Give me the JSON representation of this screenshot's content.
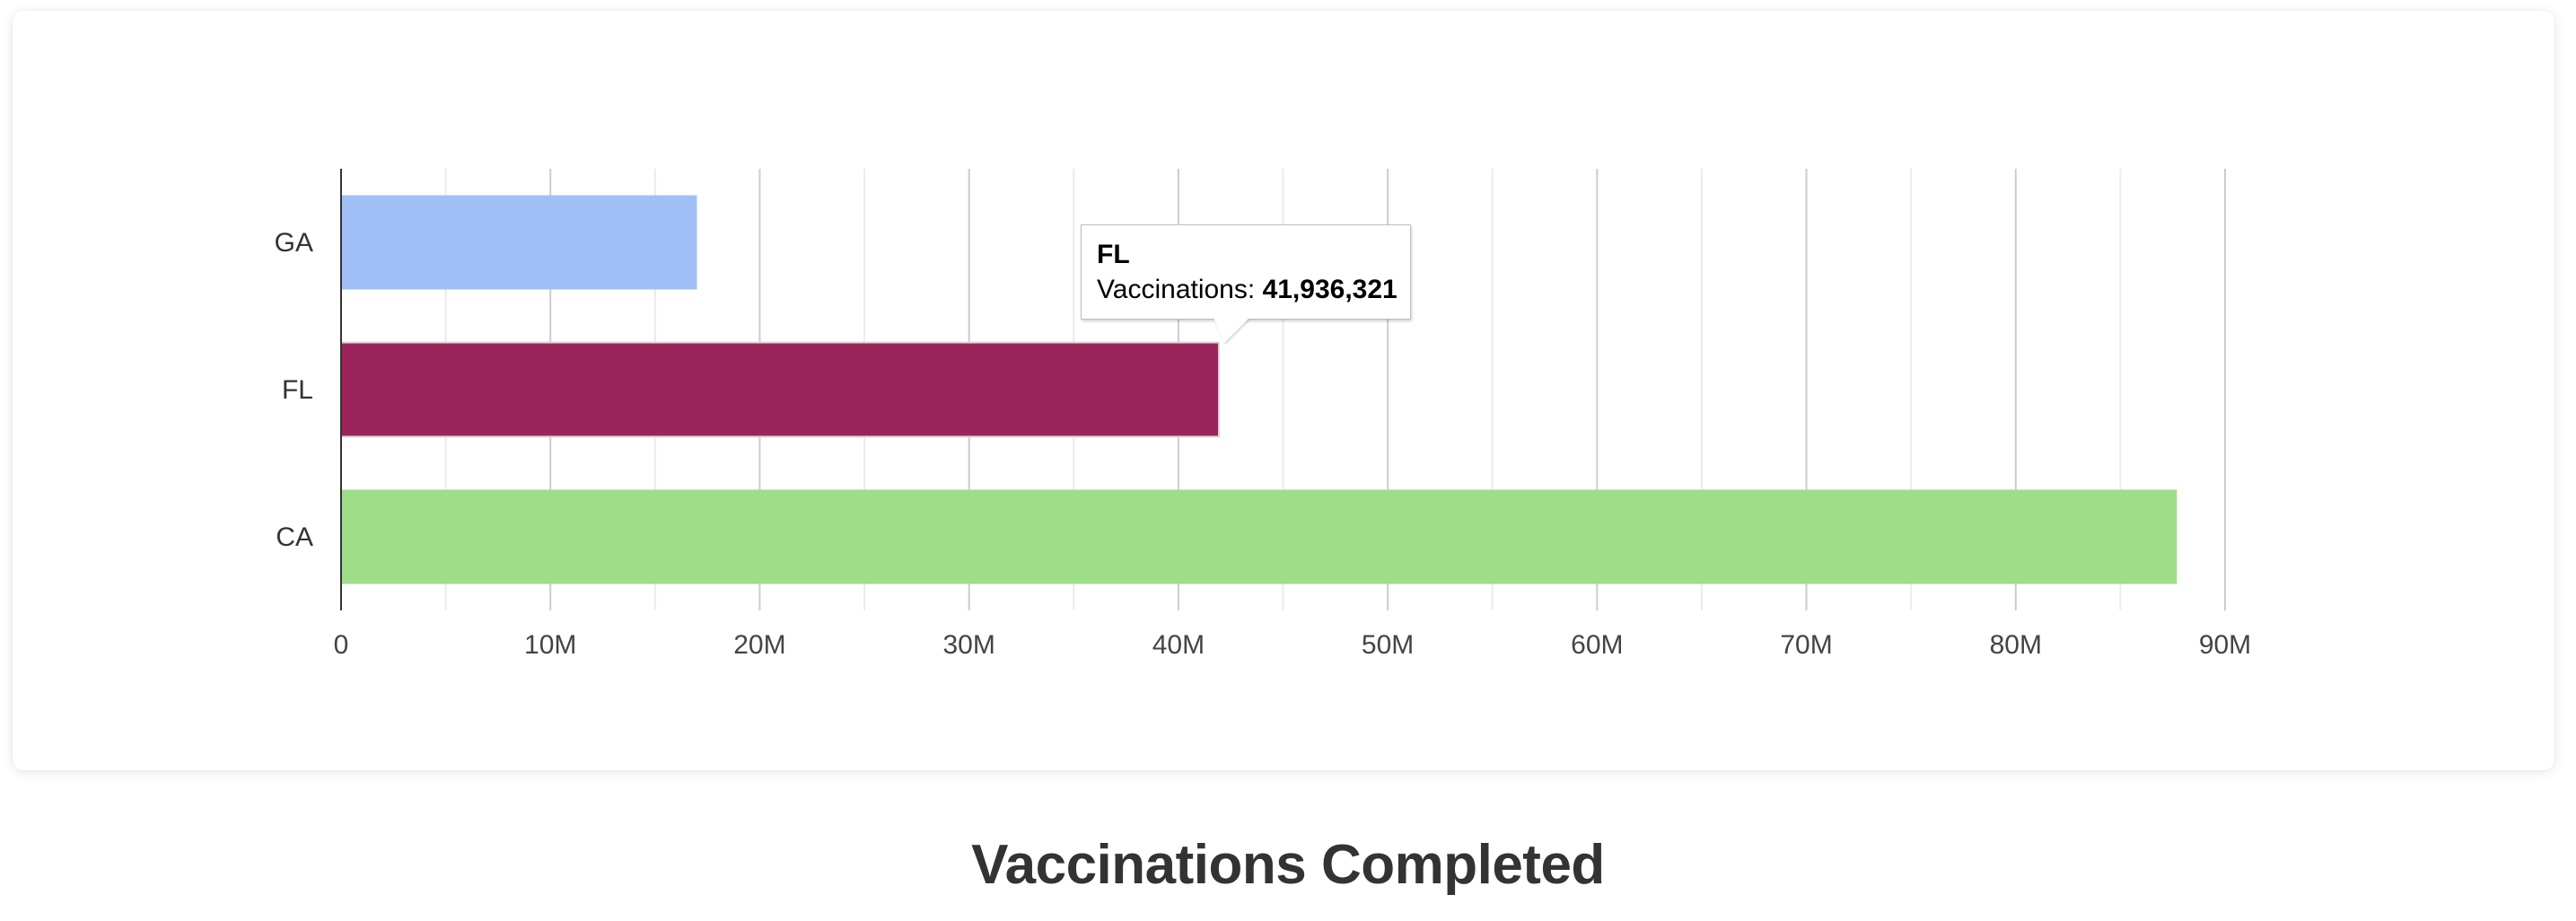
{
  "chart_data": {
    "type": "bar",
    "orientation": "horizontal",
    "title": "Vaccinations Completed",
    "xlabel": "",
    "ylabel": "",
    "categories": [
      "GA",
      "FL",
      "CA"
    ],
    "series": [
      {
        "values": [
          17000000,
          41936321,
          87700000
        ]
      }
    ],
    "bar_colors": [
      "#a1bff7",
      "#9b255b",
      "#9edd8a"
    ],
    "xlim": [
      0,
      90000000
    ],
    "x_ticks": [
      0,
      10000000,
      20000000,
      30000000,
      40000000,
      50000000,
      60000000,
      70000000,
      80000000,
      90000000
    ],
    "x_tick_labels": [
      "0",
      "10M",
      "20M",
      "30M",
      "40M",
      "50M",
      "60M",
      "70M",
      "80M",
      "90M"
    ],
    "grid": true,
    "legend": "none"
  },
  "tooltip": {
    "title": "FL",
    "label": "Vaccinations:",
    "value": "41,936,321"
  }
}
